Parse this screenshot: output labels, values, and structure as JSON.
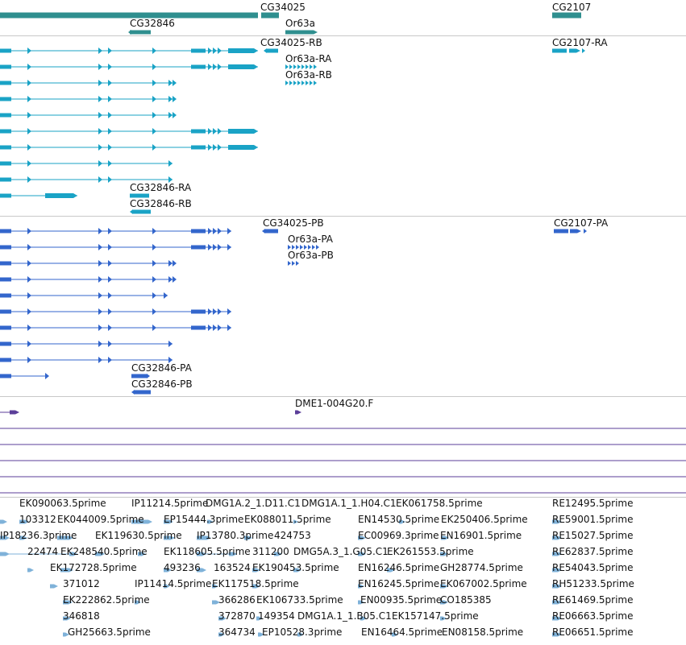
{
  "tracks": {
    "genes": {
      "color": "#2f8f8f",
      "labels": [
        "CG34025",
        "CG2107",
        "CG32846",
        "Or63a"
      ]
    },
    "transcripts_a": {
      "color": "#1aa3c6",
      "labels": [
        "CG34025-RB",
        "CG2107-RA",
        "Or63a-RA",
        "Or63a-RB",
        "CG32846-RA",
        "CG32846-RB"
      ]
    },
    "transcripts_b": {
      "color": "#3366cc",
      "labels": [
        "CG34025-PB",
        "CG2107-PA",
        "Or63a-PA",
        "Or63a-PB",
        "CG32846-PA",
        "CG32846-PB"
      ]
    },
    "alignments": {
      "color": "#5b3e99",
      "labels": [
        "DME1-004G20.F"
      ]
    },
    "ests": {
      "color": "#7fb2d9",
      "labels": [
        "EK090063.5prime",
        "IP11214.5prime",
        "DMG1A.2_1.D11.C1",
        "DMG1A.1_1.H04.C1",
        "EK061758.5prime",
        "RE12495.5prime",
        "103312",
        "EK044009.5prime",
        "EP15444.3prime",
        "EK088011.5prime",
        "EN14530.5prime",
        "EK250406.5prime",
        "RE59001.5prime",
        "IP18236.3prime",
        "EK119630.5prime",
        "IP13780.3prime",
        "424753",
        "EC00969.3prime",
        "EN16901.5prime",
        "RE15027.5prime",
        "22474",
        "EK248540.5prime",
        "EK118605.5prime",
        "311200",
        "DMG5A.3_1.G05.C1",
        "EK261553.5prime",
        "RE62837.5prime",
        "EK172728.5prime",
        "493236",
        "163524",
        "EK190453.5prime",
        "EN16246.5prime",
        "GH28774.5prime",
        "RE54043.5prime",
        "371012",
        "IP11414.5prime",
        "EK117518.5prime",
        "EN16245.5prime",
        "EK067002.5prime",
        "RH51233.5prime",
        "EK222862.5prime",
        "366286",
        "EK106733.5prime",
        "EN00935.5prime",
        "CO185385",
        "RE61469.5prime",
        "346818",
        "372870",
        "149354",
        "DMG1A.1_1.B05.C1",
        "EK157147.5prime",
        "RE06663.5prime",
        "GH25663.5prime",
        "364734",
        "EP10528.3prime",
        "EN16464.5prime",
        "EN08158.5prime",
        "RE06651.5prime"
      ]
    }
  }
}
